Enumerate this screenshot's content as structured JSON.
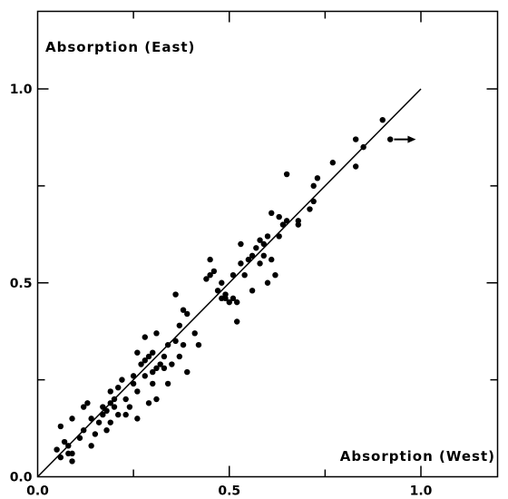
{
  "chart_data": {
    "type": "scatter",
    "title": "",
    "xlabel": "Absorption (West)",
    "ylabel": "Absorption (East)",
    "xlim": [
      0.0,
      1.2
    ],
    "ylim": [
      0.0,
      1.2
    ],
    "x_ticks": [
      "0.0",
      "0.5",
      "1.0"
    ],
    "y_ticks": [
      "0.0",
      "0.5",
      "1.0"
    ],
    "grid": false,
    "reference_line": {
      "from": [
        0.0,
        0.0
      ],
      "to": [
        1.0,
        1.0
      ]
    },
    "arrow_marker": {
      "x": 0.93,
      "y": 0.87,
      "direction": "right"
    },
    "points": [
      [
        0.05,
        0.07
      ],
      [
        0.06,
        0.05
      ],
      [
        0.06,
        0.13
      ],
      [
        0.07,
        0.09
      ],
      [
        0.08,
        0.06
      ],
      [
        0.08,
        0.08
      ],
      [
        0.09,
        0.04
      ],
      [
        0.09,
        0.06
      ],
      [
        0.09,
        0.15
      ],
      [
        0.11,
        0.1
      ],
      [
        0.12,
        0.12
      ],
      [
        0.12,
        0.18
      ],
      [
        0.13,
        0.19
      ],
      [
        0.14,
        0.08
      ],
      [
        0.14,
        0.15
      ],
      [
        0.15,
        0.11
      ],
      [
        0.16,
        0.14
      ],
      [
        0.17,
        0.16
      ],
      [
        0.17,
        0.18
      ],
      [
        0.18,
        0.12
      ],
      [
        0.18,
        0.17
      ],
      [
        0.19,
        0.14
      ],
      [
        0.19,
        0.19
      ],
      [
        0.19,
        0.22
      ],
      [
        0.2,
        0.18
      ],
      [
        0.2,
        0.2
      ],
      [
        0.21,
        0.16
      ],
      [
        0.21,
        0.23
      ],
      [
        0.22,
        0.25
      ],
      [
        0.23,
        0.16
      ],
      [
        0.23,
        0.2
      ],
      [
        0.24,
        0.18
      ],
      [
        0.25,
        0.24
      ],
      [
        0.25,
        0.26
      ],
      [
        0.26,
        0.15
      ],
      [
        0.26,
        0.22
      ],
      [
        0.26,
        0.32
      ],
      [
        0.27,
        0.29
      ],
      [
        0.28,
        0.26
      ],
      [
        0.28,
        0.3
      ],
      [
        0.28,
        0.36
      ],
      [
        0.29,
        0.19
      ],
      [
        0.29,
        0.31
      ],
      [
        0.3,
        0.24
      ],
      [
        0.3,
        0.27
      ],
      [
        0.3,
        0.32
      ],
      [
        0.31,
        0.2
      ],
      [
        0.31,
        0.28
      ],
      [
        0.31,
        0.37
      ],
      [
        0.32,
        0.29
      ],
      [
        0.33,
        0.28
      ],
      [
        0.33,
        0.31
      ],
      [
        0.34,
        0.24
      ],
      [
        0.34,
        0.34
      ],
      [
        0.35,
        0.29
      ],
      [
        0.36,
        0.35
      ],
      [
        0.36,
        0.47
      ],
      [
        0.37,
        0.31
      ],
      [
        0.37,
        0.39
      ],
      [
        0.38,
        0.34
      ],
      [
        0.38,
        0.43
      ],
      [
        0.39,
        0.27
      ],
      [
        0.39,
        0.42
      ],
      [
        0.41,
        0.37
      ],
      [
        0.42,
        0.34
      ],
      [
        0.44,
        0.51
      ],
      [
        0.45,
        0.52
      ],
      [
        0.45,
        0.56
      ],
      [
        0.46,
        0.53
      ],
      [
        0.47,
        0.48
      ],
      [
        0.48,
        0.46
      ],
      [
        0.48,
        0.5
      ],
      [
        0.49,
        0.46
      ],
      [
        0.49,
        0.47
      ],
      [
        0.5,
        0.45
      ],
      [
        0.51,
        0.46
      ],
      [
        0.51,
        0.52
      ],
      [
        0.52,
        0.4
      ],
      [
        0.52,
        0.45
      ],
      [
        0.53,
        0.55
      ],
      [
        0.53,
        0.6
      ],
      [
        0.54,
        0.52
      ],
      [
        0.55,
        0.56
      ],
      [
        0.56,
        0.57
      ],
      [
        0.56,
        0.48
      ],
      [
        0.57,
        0.59
      ],
      [
        0.58,
        0.55
      ],
      [
        0.58,
        0.61
      ],
      [
        0.59,
        0.57
      ],
      [
        0.59,
        0.6
      ],
      [
        0.6,
        0.5
      ],
      [
        0.6,
        0.62
      ],
      [
        0.61,
        0.68
      ],
      [
        0.61,
        0.56
      ],
      [
        0.62,
        0.52
      ],
      [
        0.63,
        0.62
      ],
      [
        0.63,
        0.67
      ],
      [
        0.64,
        0.65
      ],
      [
        0.65,
        0.66
      ],
      [
        0.65,
        0.78
      ],
      [
        0.68,
        0.65
      ],
      [
        0.68,
        0.66
      ],
      [
        0.71,
        0.69
      ],
      [
        0.72,
        0.75
      ],
      [
        0.72,
        0.71
      ],
      [
        0.73,
        0.77
      ],
      [
        0.77,
        0.81
      ],
      [
        0.83,
        0.8
      ],
      [
        0.83,
        0.87
      ],
      [
        0.85,
        0.85
      ],
      [
        0.9,
        0.92
      ],
      [
        0.92,
        0.87
      ]
    ]
  }
}
